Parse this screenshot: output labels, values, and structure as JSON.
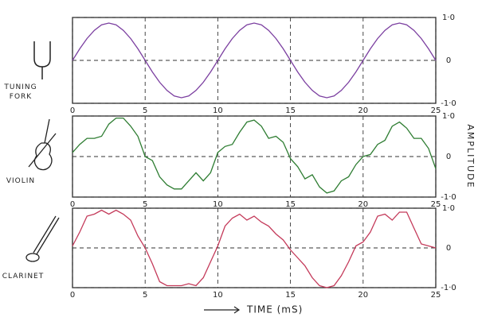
{
  "chart_data": [
    {
      "type": "line",
      "label": "TUNING FORK",
      "x": [
        0,
        0.5,
        1,
        1.5,
        2,
        2.5,
        3,
        3.5,
        4,
        4.5,
        5,
        5.5,
        6,
        6.5,
        7,
        7.5,
        8,
        8.5,
        9,
        9.5,
        10,
        10.5,
        11,
        11.5,
        12,
        12.5,
        13,
        13.5,
        14,
        14.5,
        15,
        15.5,
        16,
        16.5,
        17,
        17.5,
        18,
        18.5,
        19,
        19.5,
        20,
        20.5,
        21,
        21.5,
        22,
        22.5,
        23,
        23.5,
        24,
        24.5,
        25
      ],
      "series": [
        {
          "color": "#7b3fa0",
          "values": [
            0,
            0.27,
            0.51,
            0.7,
            0.83,
            0.87,
            0.83,
            0.7,
            0.51,
            0.27,
            0,
            -0.27,
            -0.51,
            -0.7,
            -0.83,
            -0.87,
            -0.83,
            -0.7,
            -0.51,
            -0.27,
            0,
            0.27,
            0.51,
            0.7,
            0.83,
            0.87,
            0.83,
            0.7,
            0.51,
            0.27,
            0,
            -0.27,
            -0.51,
            -0.7,
            -0.83,
            -0.87,
            -0.83,
            -0.7,
            -0.51,
            -0.27,
            0,
            0.27,
            0.51,
            0.7,
            0.83,
            0.87,
            0.83,
            0.7,
            0.51,
            0.27,
            0
          ]
        }
      ],
      "xlim": [
        0,
        25
      ],
      "xticks": [
        0,
        5,
        10,
        15,
        20,
        25
      ],
      "ylim": [
        -1,
        1
      ],
      "yticks": [
        {
          "value": 1,
          "label": "1·0"
        },
        0,
        {
          "value": -1,
          "label": "-1·0"
        }
      ],
      "grid": true
    },
    {
      "type": "line",
      "label": "VIOLIN",
      "ylabel": "AMPLITUDE",
      "x": [
        0,
        0.5,
        1,
        1.5,
        2,
        2.5,
        3,
        3.5,
        4,
        4.5,
        5,
        5.5,
        6,
        6.5,
        7,
        7.5,
        8,
        8.5,
        9,
        9.5,
        10,
        10.5,
        11,
        11.5,
        12,
        12.5,
        13,
        13.5,
        14,
        14.5,
        15,
        15.5,
        16,
        16.5,
        17,
        17.5,
        18,
        18.5,
        19,
        19.5,
        20,
        20.5,
        21,
        21.5,
        22,
        22.5,
        23,
        23.5,
        24,
        24.5,
        25
      ],
      "series": [
        {
          "color": "#2e7d32",
          "values": [
            0.1,
            0.3,
            0.45,
            0.45,
            0.5,
            0.8,
            0.95,
            0.95,
            0.75,
            0.5,
            0,
            -0.1,
            -0.5,
            -0.7,
            -0.8,
            -0.8,
            -0.6,
            -0.4,
            -0.6,
            -0.4,
            0.1,
            0.25,
            0.3,
            0.6,
            0.85,
            0.9,
            0.75,
            0.45,
            0.5,
            0.35,
            -0.05,
            -0.25,
            -0.55,
            -0.45,
            -0.75,
            -0.9,
            -0.85,
            -0.6,
            -0.5,
            -0.2,
            0,
            0.05,
            0.3,
            0.4,
            0.75,
            0.85,
            0.7,
            0.45,
            0.45,
            0.2,
            -0.3
          ]
        }
      ],
      "xlim": [
        0,
        25
      ],
      "xticks": [
        0,
        5,
        10,
        15,
        20,
        25
      ],
      "ylim": [
        -1,
        1
      ],
      "yticks": [
        {
          "value": 1,
          "label": "1·0"
        },
        0,
        {
          "value": -1,
          "label": "-1·0"
        }
      ],
      "grid": true
    },
    {
      "type": "line",
      "label": "CLARINET",
      "xlabel": "TIME (mS)",
      "x": [
        0,
        0.5,
        1,
        1.5,
        2,
        2.5,
        3,
        3.5,
        4,
        4.5,
        5,
        5.5,
        6,
        6.5,
        7,
        7.5,
        8,
        8.5,
        9,
        9.5,
        10,
        10.5,
        11,
        11.5,
        12,
        12.5,
        13,
        13.5,
        14,
        14.5,
        15,
        15.5,
        16,
        16.5,
        17,
        17.5,
        18,
        18.5,
        19,
        19.5,
        20,
        20.5,
        21,
        21.5,
        22,
        22.5,
        23,
        23.5,
        24,
        24.5,
        25
      ],
      "series": [
        {
          "color": "#c43a5a",
          "values": [
            0.05,
            0.4,
            0.8,
            0.85,
            0.95,
            0.85,
            0.95,
            0.85,
            0.7,
            0.3,
            0,
            -0.4,
            -0.85,
            -0.95,
            -0.95,
            -0.95,
            -0.9,
            -0.95,
            -0.75,
            -0.35,
            0.05,
            0.55,
            0.75,
            0.85,
            0.7,
            0.8,
            0.65,
            0.55,
            0.35,
            0.2,
            -0.05,
            -0.25,
            -0.45,
            -0.75,
            -0.95,
            -1,
            -0.95,
            -0.7,
            -0.35,
            0.05,
            0.15,
            0.4,
            0.8,
            0.85,
            0.7,
            0.9,
            0.9,
            0.5,
            0.1,
            0.05,
            0
          ]
        }
      ],
      "xlim": [
        0,
        25
      ],
      "xticks": [
        0,
        5,
        10,
        15,
        20,
        25
      ],
      "ylim": [
        -1,
        1
      ],
      "yticks": [
        {
          "value": 1,
          "label": "1·0"
        },
        0,
        {
          "value": -1,
          "label": "-1·0"
        }
      ],
      "grid": true
    }
  ]
}
